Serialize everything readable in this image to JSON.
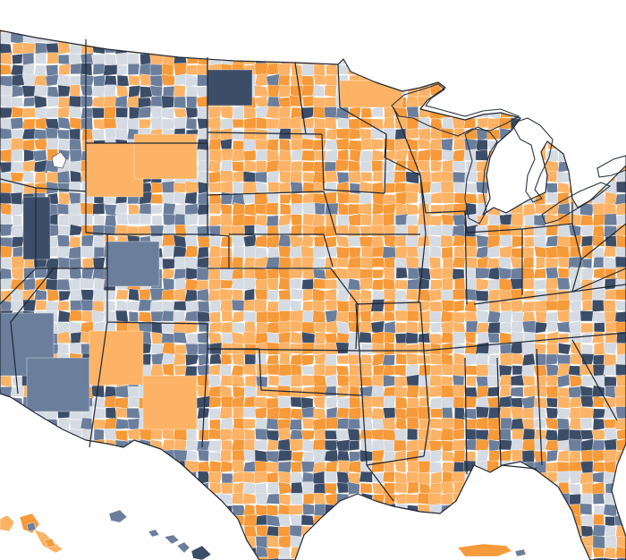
{
  "map": {
    "palette": {
      "dark_blue": "#3c4d68",
      "mid_blue": "#6b7f9c",
      "light_gray_blue": "#d5dbe3",
      "light_orange": "#fcb366",
      "orange": "#f79a3a",
      "background": "#ffffff",
      "water": "#ffffff",
      "state_border": "#1f2733"
    },
    "regions": [
      "contiguous-us",
      "alaska-inset",
      "hawaii-inset",
      "puerto-rico-inset"
    ],
    "features": [
      "lake-superior",
      "lake-michigan",
      "lake-huron",
      "lake-erie",
      "lake-ontario",
      "great-salt-lake"
    ]
  }
}
